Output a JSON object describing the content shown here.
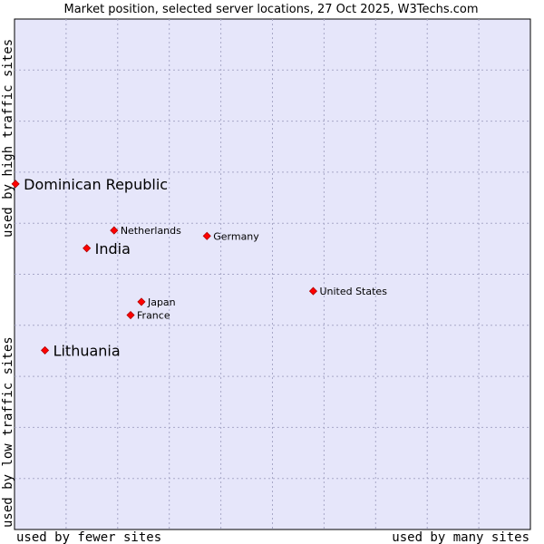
{
  "chart_data": {
    "type": "scatter",
    "title": "Market position, selected server locations, 27 Oct 2025, W3Techs.com",
    "xlabel_low": "used by fewer sites",
    "xlabel_high": "used by many sites",
    "ylabel_low": "used by low traffic sites",
    "ylabel_high": "used by high traffic sites",
    "xlim": [
      0,
      100
    ],
    "ylim": [
      0,
      100
    ],
    "grid": true,
    "colors": {
      "plot_bg": "#e6e6fa",
      "grid": "#a8a8c8",
      "point": "#ff0000",
      "point_edge": "#b00000"
    },
    "points": [
      {
        "name": "Dominican Republic",
        "x": 0.2,
        "y": 67.7,
        "emphasis": true
      },
      {
        "name": "Netherlands",
        "x": 19.3,
        "y": 58.6,
        "emphasis": false
      },
      {
        "name": "India",
        "x": 14.0,
        "y": 55.1,
        "emphasis": true
      },
      {
        "name": "Germany",
        "x": 37.3,
        "y": 57.5,
        "emphasis": false
      },
      {
        "name": "United States",
        "x": 57.9,
        "y": 46.7,
        "emphasis": false
      },
      {
        "name": "Japan",
        "x": 24.6,
        "y": 44.6,
        "emphasis": false
      },
      {
        "name": "France",
        "x": 22.5,
        "y": 42.0,
        "emphasis": false
      },
      {
        "name": "Lithuania",
        "x": 5.9,
        "y": 35.1,
        "emphasis": true
      }
    ]
  }
}
